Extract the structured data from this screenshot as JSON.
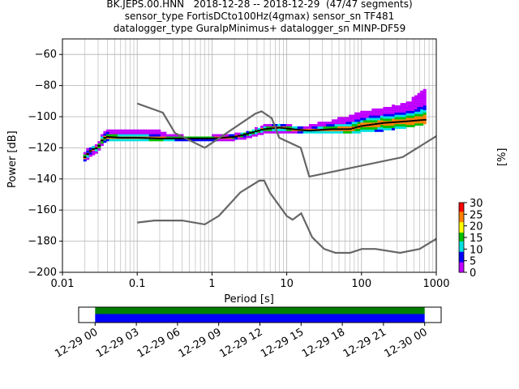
{
  "chart_data": {
    "type": "heatmap",
    "title_lines": [
      "BK.JEPS.00.HNN   2018-12-28 -- 2018-12-29  (47/47 segments)",
      "sensor_type FortisDCto100Hz(4gmax) sensor_sn TF481",
      "datalogger_type GuralpMinimus+ datalogger_sn MINP-DF59"
    ],
    "xlabel": "Period [s]",
    "ylabel": "Power [dB]",
    "x_scale": "log",
    "xlim": [
      0.01,
      1000
    ],
    "ylim": [
      -200,
      -50
    ],
    "x_ticks": [
      0.01,
      0.1,
      1,
      10,
      100,
      1000
    ],
    "x_tick_labels": [
      "0.01",
      "0.1",
      "1",
      "10",
      "100",
      "1000"
    ],
    "y_ticks": [
      -200,
      -180,
      -160,
      -140,
      -120,
      -100,
      -80,
      -60
    ],
    "y_tick_labels": [
      "−200",
      "−180",
      "−160",
      "−140",
      "−120",
      "−100",
      "−80",
      "−60"
    ],
    "grid": true,
    "colorbar": {
      "label": "[%]",
      "range": [
        0,
        30
      ],
      "ticks": [
        0,
        5,
        10,
        15,
        20,
        25,
        30
      ],
      "tick_labels": [
        "0",
        "5",
        "10",
        "15",
        "20",
        "25",
        "30"
      ],
      "colors": [
        "#ffffff",
        "#c000ff",
        "#0000ff",
        "#00e0e0",
        "#00c000",
        "#ffff00",
        "#ff8000",
        "#ff0000"
      ]
    },
    "noise_models": {
      "color": "#666666",
      "high": {
        "period": [
          0.1,
          0.22,
          0.32,
          0.8,
          3.8,
          4.6,
          6.3,
          7.9,
          15.4,
          20,
          354.8,
          1000
        ],
        "power": [
          -91.5,
          -97.4,
          -110.5,
          -120,
          -98,
          -96.5,
          -101,
          -113.5,
          -120,
          -138.5,
          -126,
          -112.5
        ]
      },
      "low": {
        "period": [
          0.1,
          0.17,
          0.4,
          0.8,
          1.24,
          2.4,
          4.3,
          5,
          6,
          10,
          12,
          15.6,
          21.9,
          31.6,
          45,
          70,
          101,
          154,
          328,
          600,
          1000
        ],
        "power": [
          -168,
          -166.7,
          -166.7,
          -169.2,
          -163.7,
          -148.6,
          -141.1,
          -141.1,
          -149,
          -163.8,
          -166.2,
          -162.1,
          -177.5,
          -185,
          -187.5,
          -187.5,
          -185,
          -185,
          -187.5,
          -185,
          -178.5
        ]
      }
    },
    "ppsd_mode": {
      "period": [
        0.02,
        0.025,
        0.03,
        0.035,
        0.04,
        0.06,
        0.1,
        0.2,
        0.5,
        1,
        2,
        3,
        5,
        8,
        12,
        20,
        40,
        70,
        100,
        200,
        400,
        700
      ],
      "power": [
        -126,
        -121,
        -120,
        -114,
        -113,
        -113.5,
        -113.5,
        -114,
        -114,
        -114,
        -113,
        -111,
        -108,
        -107,
        -108,
        -109,
        -108,
        -108,
        -106,
        -104,
        -103,
        -102
      ]
    },
    "ppsd_spread": {
      "period": [
        0.02,
        0.025,
        0.03,
        0.035,
        0.04,
        0.06,
        0.1,
        0.2,
        0.5,
        1,
        2,
        3,
        5,
        8,
        12,
        20,
        40,
        70,
        100,
        200,
        400,
        700
      ],
      "upper": [
        -123,
        -120,
        -118,
        -110,
        -109,
        -109,
        -109,
        -110,
        -114,
        -113,
        -112,
        -110,
        -106,
        -105,
        -106,
        -106,
        -103,
        -100,
        -97,
        -95,
        -92,
        -83
      ],
      "lower": [
        -128,
        -124,
        -122,
        -116,
        -115,
        -115,
        -115,
        -115,
        -115,
        -115,
        -114,
        -113,
        -110,
        -110,
        -110,
        -110,
        -110,
        -110,
        -109,
        -108,
        -106,
        -104
      ]
    },
    "time_axis": {
      "tick_labels": [
        "12-29 00",
        "12-29 03",
        "12-29 06",
        "12-29 09",
        "12-29 12",
        "12-29 15",
        "12-29 18",
        "12-29 21",
        "12-30 00"
      ],
      "tick_hours": [
        0,
        3,
        6,
        9,
        12,
        15,
        18,
        21,
        24
      ],
      "range_hours": [
        -1.2,
        25.2
      ],
      "coverage_hours": [
        0,
        24
      ],
      "coverage_colors": [
        "#008000",
        "#0000ff"
      ]
    }
  }
}
